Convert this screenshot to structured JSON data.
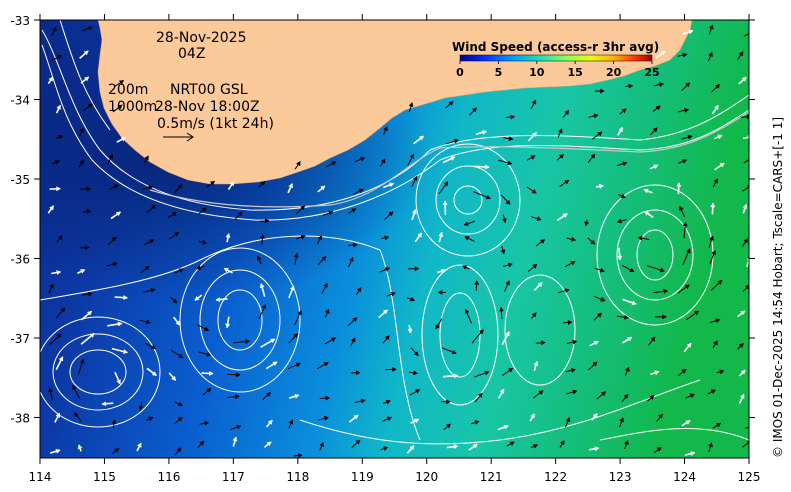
{
  "map": {
    "date": "28-Nov-2025",
    "hour": "04Z",
    "contour_label_1": "200m",
    "contour_label_2": "1000m",
    "source": "NRT00 GSL",
    "source_time": "28-Nov 18:00Z",
    "scale_label": "0.5m/s (1kt 24h)",
    "credit": "© IMOS 01-Dec-2025 14:54 Hobart; Tscale=CARS+[-1 1]",
    "colors": {
      "land": "#fcc99a",
      "low_speed": "#0a2a8c",
      "high_speed": "#17b84a",
      "contour": "#ffffff",
      "arrow_black": "#000000",
      "arrow_white": "#ffffff"
    }
  },
  "axes": {
    "x_ticks": [
      "114",
      "115",
      "116",
      "117",
      "118",
      "119",
      "120",
      "121",
      "122",
      "123",
      "124",
      "125"
    ],
    "y_ticks": [
      "-33",
      "-34",
      "-35",
      "-36",
      "-37",
      "-38"
    ]
  },
  "colorbar": {
    "title": "Wind Speed (access-r 3hr avg)",
    "ticks": [
      "0",
      "5",
      "10",
      "15",
      "20",
      "25"
    ],
    "colors": [
      "#00008f",
      "#0030ff",
      "#00a0ff",
      "#20e0c0",
      "#80ff60",
      "#e8ff10",
      "#ffb000",
      "#ff4000",
      "#a00000"
    ]
  }
}
